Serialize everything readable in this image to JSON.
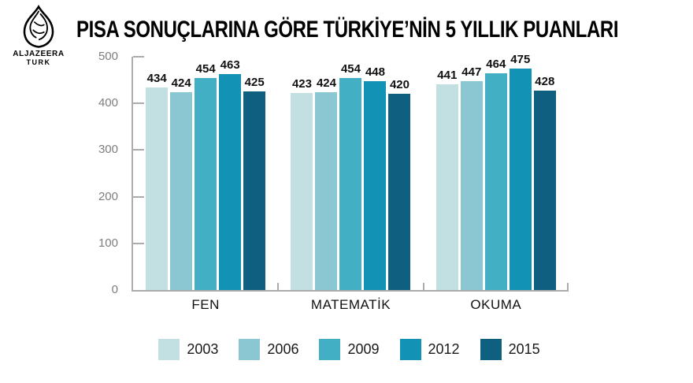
{
  "logo": {
    "line1": "ALJAZEERA",
    "line2": "TURK"
  },
  "title": "PISA SONUÇLARINA GÖRE TÜRKİYE’NİN 5 YILLIK PUANLARI",
  "chart_data": {
    "type": "bar",
    "title": "PISA SONUÇLARINA GÖRE TÜRKİYE’NİN 5 YILLIK PUANLARI",
    "categories": [
      "FEN",
      "MATEMATİK",
      "OKUMA"
    ],
    "series": [
      {
        "name": "2003",
        "color": "#c2e0e2",
        "values": [
          434,
          423,
          441
        ]
      },
      {
        "name": "2006",
        "color": "#8bc7d3",
        "values": [
          424,
          424,
          447
        ]
      },
      {
        "name": "2009",
        "color": "#42afc4",
        "values": [
          454,
          454,
          464
        ]
      },
      {
        "name": "2012",
        "color": "#1292b4",
        "values": [
          463,
          448,
          475
        ]
      },
      {
        "name": "2015",
        "color": "#0e5f80",
        "values": [
          425,
          420,
          428
        ]
      }
    ],
    "ylim": [
      0,
      500
    ],
    "yticks": [
      0,
      100,
      200,
      300,
      400,
      500
    ],
    "grid": false,
    "bar_labels": true,
    "legend_position": "bottom",
    "xlabel": "",
    "ylabel": ""
  },
  "colors": {
    "axis": "#ababab",
    "y_tick_label": "#7d7d7d",
    "text": "#111111",
    "background": "#ffffff"
  }
}
